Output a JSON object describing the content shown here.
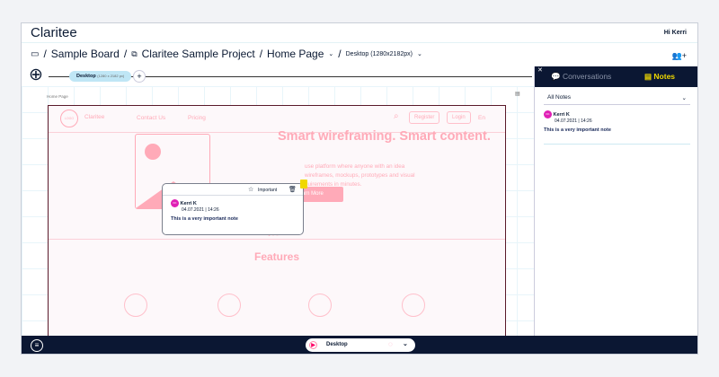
{
  "app": {
    "logo": "Claritee",
    "greeting": "Hi Kerri"
  },
  "breadcrumb": {
    "board": "Sample Board",
    "project": "Claritee Sample Project",
    "page": "Home Page",
    "viewport": "Desktop (1280x2182px)",
    "sep": "/"
  },
  "toolbar": {
    "tab_label": "Desktop",
    "tab_size": "(1280 x 2182 px)",
    "add": "+"
  },
  "canvas": {
    "page_label": "Home Page"
  },
  "wire": {
    "logo": "LOGO",
    "brand": "Claritee",
    "nav": [
      "Contact Us",
      "Pricing"
    ],
    "register": "Register",
    "login": "Login",
    "lang": "En",
    "headline": "Smart wireframing. Smart content.",
    "body": [
      "use platform where anyone with an idea",
      "wireframes, mockups, prototypes and visual",
      "quirements in minutes."
    ],
    "cta": "Learn More",
    "features": "Features"
  },
  "popup": {
    "important": "Important",
    "initials": "KK",
    "author": "Kerri K",
    "date": "04.07.2021 | 14:26",
    "text": "This is a very important note"
  },
  "panel": {
    "tabs": [
      "Conversations",
      "Notes"
    ],
    "filter": "All Notes",
    "notes": [
      {
        "initials": "KK",
        "author": "Kerri K",
        "date": "04.07.2021 | 14:26",
        "text": "This is a very important note"
      }
    ]
  },
  "bottom": {
    "device": "Desktop"
  },
  "colors": {
    "navy": "#0b1733",
    "accent": "#f0d800",
    "wire_pink": "#ffaab8",
    "avatar": "#e01fb5"
  }
}
